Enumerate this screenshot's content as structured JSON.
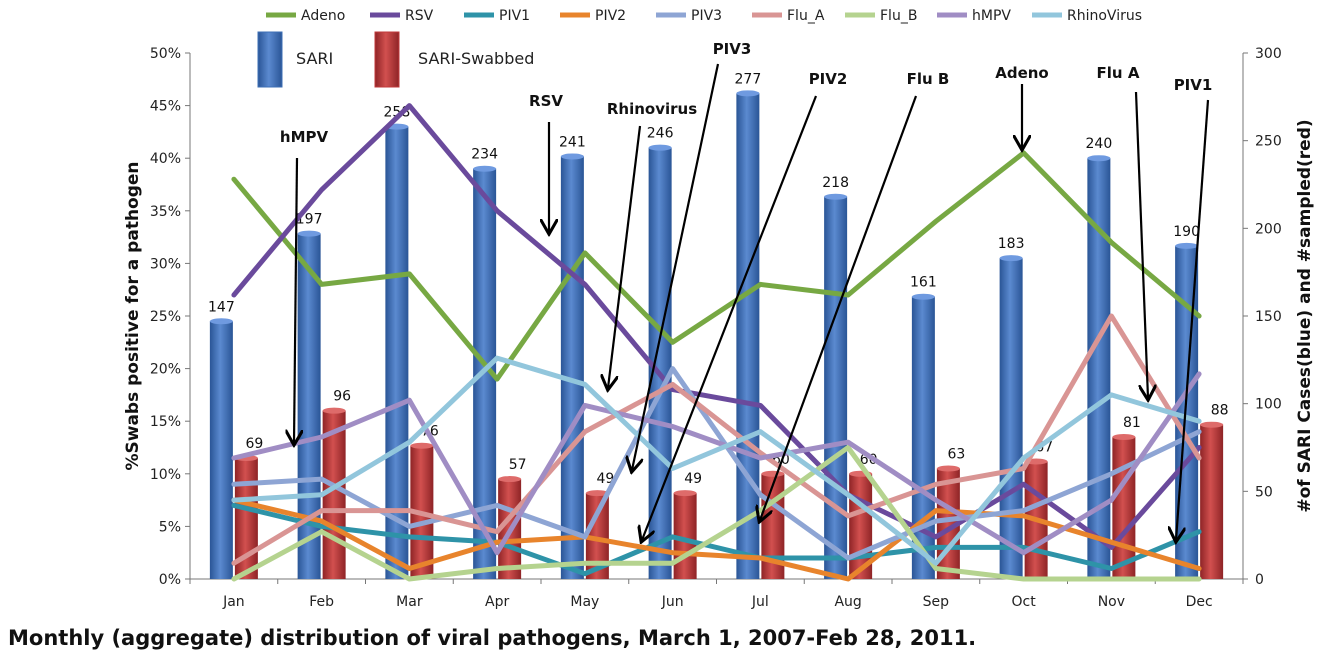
{
  "caption": "Monthly (aggregate) distribution of viral pathogens, March 1, 2007-Feb 28, 2011.",
  "chart_data": {
    "type": "bar+line",
    "categories": [
      "Jan",
      "Feb",
      "Mar",
      "Apr",
      "May",
      "Jun",
      "Jul",
      "Aug",
      "Sep",
      "Oct",
      "Nov",
      "Dec"
    ],
    "ylabel_left": "%Swabs positive for a pathogen",
    "ylabel_right": "#of SARI Cases(blue) and #sampled(red)",
    "ylim_left": [
      0,
      0.5
    ],
    "ylim_right": [
      0,
      300
    ],
    "left_ticks": [
      "0%",
      "5%",
      "10%",
      "15%",
      "20%",
      "25%",
      "30%",
      "35%",
      "40%",
      "45%",
      "50%"
    ],
    "right_ticks": [
      "0",
      "50",
      "100",
      "150",
      "200",
      "250",
      "300"
    ],
    "bar_series": [
      {
        "name": "SARI",
        "color": "#3d6fb6",
        "values": [
          147,
          197,
          258,
          234,
          241,
          246,
          277,
          218,
          161,
          183,
          240,
          190
        ]
      },
      {
        "name": "SARI-Swabbed",
        "color": "#c0393b",
        "values": [
          69,
          96,
          76,
          57,
          49,
          49,
          60,
          60,
          63,
          67,
          81,
          88
        ]
      }
    ],
    "line_series": [
      {
        "name": "Adeno",
        "color": "#77a843",
        "values": [
          0.38,
          0.28,
          0.29,
          0.19,
          0.31,
          0.225,
          0.28,
          0.27,
          0.34,
          0.405,
          0.32,
          0.25
        ]
      },
      {
        "name": "RSV",
        "color": "#6a4a9c",
        "values": [
          0.27,
          0.37,
          0.45,
          0.35,
          0.28,
          0.18,
          0.165,
          0.08,
          0.04,
          0.09,
          0.03,
          0.125
        ]
      },
      {
        "name": "PIV1",
        "color": "#2e93a8",
        "values": [
          0.07,
          0.05,
          0.04,
          0.035,
          0.005,
          0.04,
          0.02,
          0.02,
          0.03,
          0.03,
          0.01,
          0.045
        ]
      },
      {
        "name": "PIV2",
        "color": "#e8842c",
        "values": [
          0.075,
          0.055,
          0.01,
          0.035,
          0.04,
          0.025,
          0.02,
          0.0,
          0.065,
          0.06,
          0.035,
          0.01
        ]
      },
      {
        "name": "PIV3",
        "color": "#8ea5d4",
        "values": [
          0.09,
          0.095,
          0.05,
          0.07,
          0.04,
          0.2,
          0.08,
          0.02,
          0.055,
          0.065,
          0.1,
          0.14
        ]
      },
      {
        "name": "Flu_A",
        "color": "#d99594",
        "values": [
          0.015,
          0.065,
          0.065,
          0.045,
          0.14,
          0.185,
          0.12,
          0.06,
          0.09,
          0.105,
          0.25,
          0.115
        ]
      },
      {
        "name": "Flu_B",
        "color": "#b5d38f",
        "values": [
          0.0,
          0.045,
          0.0,
          0.01,
          0.015,
          0.015,
          0.065,
          0.125,
          0.01,
          0.0,
          0.0,
          0.0
        ]
      },
      {
        "name": "hMPV",
        "color": "#a08dc4",
        "values": [
          0.115,
          0.135,
          0.17,
          0.025,
          0.165,
          0.145,
          0.115,
          0.13,
          0.075,
          0.025,
          0.075,
          0.195
        ]
      },
      {
        "name": "RhinoVirus",
        "color": "#92c6dc",
        "values": [
          0.075,
          0.08,
          0.13,
          0.21,
          0.185,
          0.105,
          0.14,
          0.08,
          0.015,
          0.115,
          0.175,
          0.15
        ]
      }
    ],
    "annotations": [
      {
        "text": "hMPV",
        "month": "Jan"
      },
      {
        "text": "RSV",
        "month": "May"
      },
      {
        "text": "Rhinovirus",
        "month": "May"
      },
      {
        "text": "PIV3",
        "month": "Jun"
      },
      {
        "text": "PIV2",
        "month": "Jun"
      },
      {
        "text": "Flu B",
        "month": "Jul"
      },
      {
        "text": "Adeno",
        "month": "Oct"
      },
      {
        "text": "Flu A",
        "month": "Nov"
      },
      {
        "text": "PIV1",
        "month": "Dec"
      }
    ],
    "legend": "top"
  }
}
